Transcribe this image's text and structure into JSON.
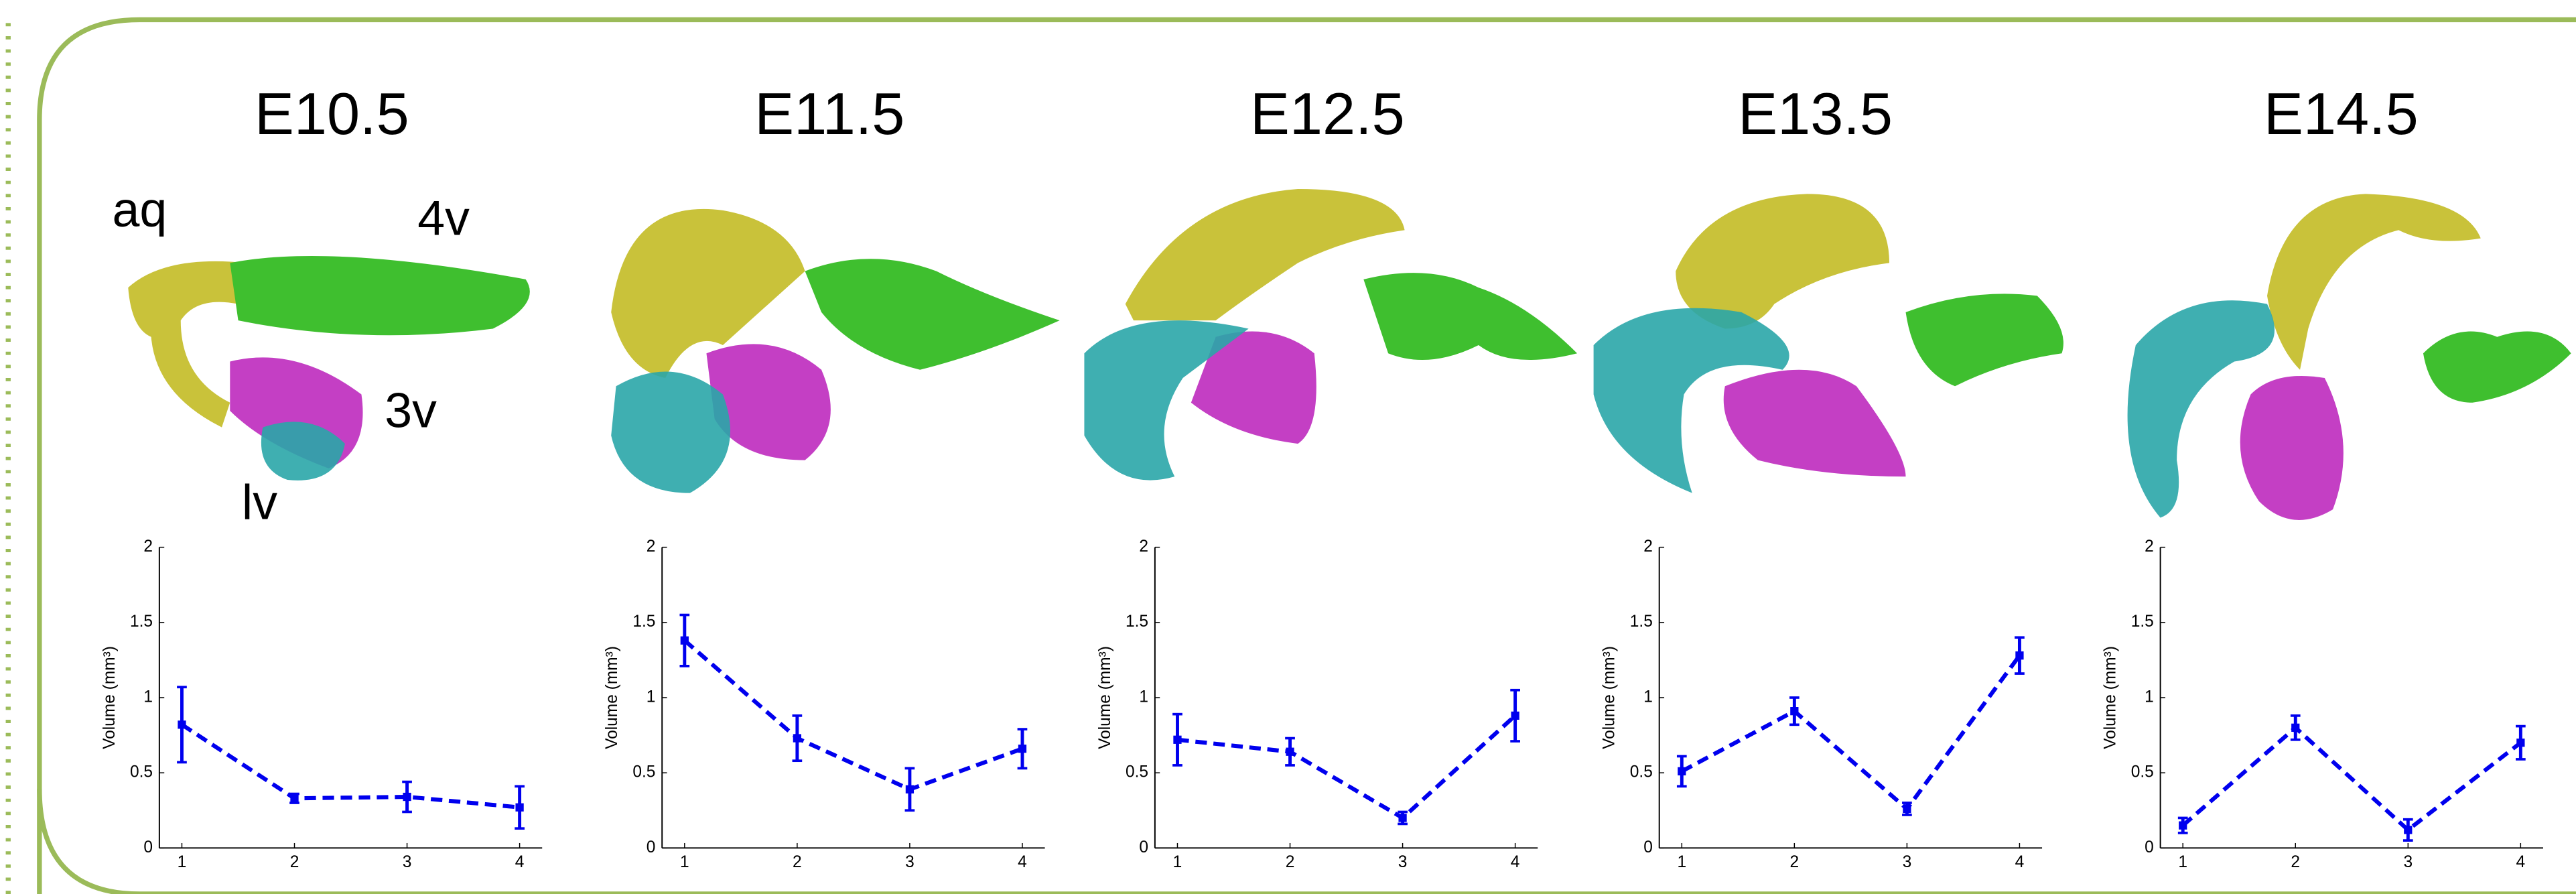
{
  "chart_data": [
    {
      "type": "line",
      "title": "E10.5",
      "ylabel": "Volume (mm³)",
      "x": [
        1,
        2,
        3,
        4
      ],
      "values": [
        0.82,
        0.33,
        0.34,
        0.27
      ],
      "errors": [
        0.25,
        0.03,
        0.1,
        0.14
      ],
      "color": "#0000ee",
      "xlim": [
        0.8,
        4.2
      ],
      "xticks": [
        1,
        2,
        3,
        4
      ],
      "ylim": [
        0,
        2
      ],
      "yticks": [
        0,
        0.5,
        1,
        1.5,
        2
      ],
      "annotations": [
        "aq",
        "4v",
        "3v",
        "lv"
      ]
    },
    {
      "type": "line",
      "title": "E11.5",
      "ylabel": "Volume (mm³)",
      "x": [
        1,
        2,
        3,
        4
      ],
      "values": [
        1.38,
        0.73,
        0.39,
        0.66
      ],
      "errors": [
        0.17,
        0.15,
        0.14,
        0.13
      ],
      "color": "#0000ee",
      "xlim": [
        0.8,
        4.2
      ],
      "xticks": [
        1,
        2,
        3,
        4
      ],
      "ylim": [
        0,
        2
      ],
      "yticks": [
        0,
        0.5,
        1,
        1.5,
        2
      ]
    },
    {
      "type": "line",
      "title": "E12.5",
      "ylabel": "Volume (mm³)",
      "x": [
        1,
        2,
        3,
        4
      ],
      "values": [
        0.72,
        0.64,
        0.2,
        0.88
      ],
      "errors": [
        0.17,
        0.09,
        0.04,
        0.17
      ],
      "color": "#0000ee",
      "xlim": [
        0.8,
        4.2
      ],
      "xticks": [
        1,
        2,
        3,
        4
      ],
      "ylim": [
        0,
        2
      ],
      "yticks": [
        0,
        0.5,
        1,
        1.5,
        2
      ]
    },
    {
      "type": "line",
      "title": "E13.5",
      "ylabel": "Volume (mm³)",
      "x": [
        1,
        2,
        3,
        4
      ],
      "values": [
        0.51,
        0.91,
        0.26,
        1.28
      ],
      "errors": [
        0.1,
        0.09,
        0.04,
        0.12
      ],
      "color": "#0000ee",
      "xlim": [
        0.8,
        4.2
      ],
      "xticks": [
        1,
        2,
        3,
        4
      ],
      "ylim": [
        0,
        2
      ],
      "yticks": [
        0,
        0.5,
        1,
        1.5,
        2
      ]
    },
    {
      "type": "line",
      "title": "E14.5",
      "ylabel": "Volume (mm³)",
      "x": [
        1,
        2,
        3,
        4
      ],
      "values": [
        0.15,
        0.8,
        0.12,
        0.7
      ],
      "errors": [
        0.05,
        0.08,
        0.07,
        0.11
      ],
      "color": "#0000ee",
      "xlim": [
        0.8,
        4.2
      ],
      "xticks": [
        1,
        2,
        3,
        4
      ],
      "ylim": [
        0,
        2
      ],
      "yticks": [
        0,
        0.5,
        1,
        1.5,
        2
      ]
    }
  ]
}
